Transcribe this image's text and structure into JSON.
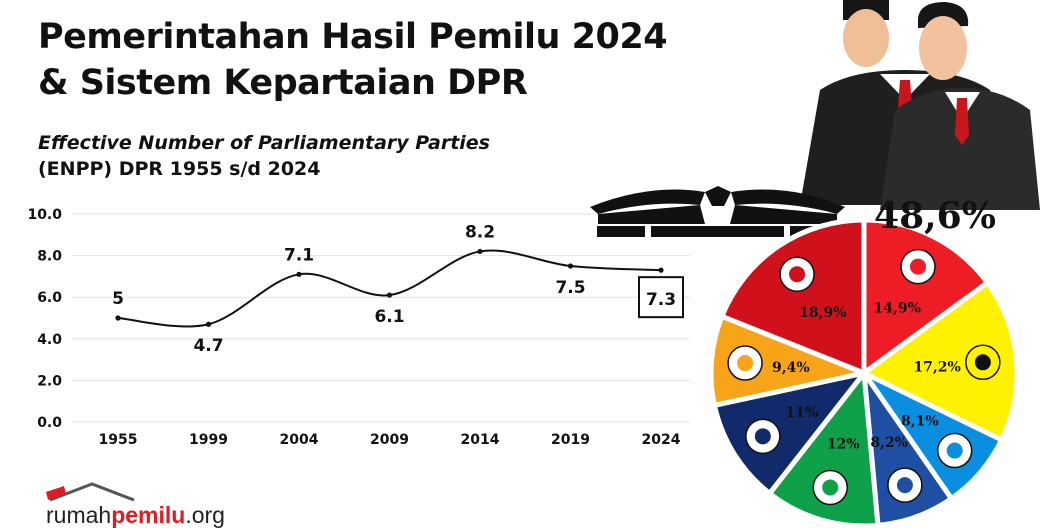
{
  "header": {
    "title_line1": "Pemerintahan Hasil Pemilu 2024",
    "title_line2": "& Sistem Kepartaian DPR",
    "subtitle_line1": "Effective Number of Parliamentary Parties",
    "subtitle_line2": "(ENPP) DPR 1955 s/d 2024"
  },
  "chart_data": [
    {
      "type": "line",
      "title": "Effective Number of Parliamentary Parties (ENPP) DPR 1955 s/d 2024",
      "x": [
        "1955",
        "1999",
        "2004",
        "2009",
        "2014",
        "2019",
        "2024"
      ],
      "values": [
        5,
        4.7,
        7.1,
        6.1,
        8.2,
        7.5,
        7.3
      ],
      "labels": [
        "5",
        "4.7",
        "7.1",
        "6.1",
        "8.2",
        "7.5",
        "7.3"
      ],
      "yticks": [
        "0.0",
        "2.0",
        "4.0",
        "6.0",
        "8.0",
        "10.0"
      ],
      "ylim": [
        0,
        10
      ],
      "grid": true,
      "highlight": "2024",
      "color": "#111111"
    },
    {
      "type": "pie",
      "headline": "48,6%",
      "slices": [
        {
          "label": "14,9%",
          "value": 14.9,
          "party_icon": "garuda-icon",
          "color": "#ee1c24"
        },
        {
          "label": "17,2%",
          "value": 17.2,
          "party_icon": "banyan-tree-icon",
          "color": "#fff200"
        },
        {
          "label": "8,1%",
          "value": 8.1,
          "party_icon": "star-emblem-icon",
          "color": "#0a8fe0"
        },
        {
          "label": "8,2%",
          "value": 8.2,
          "party_icon": "triangle-flag-icon",
          "color": "#1f4fa3"
        },
        {
          "label": "12%",
          "value": 12,
          "party_icon": "globe-stars-icon",
          "color": "#0fa04a"
        },
        {
          "label": "11%",
          "value": 11,
          "party_icon": "wave-sphere-icon",
          "color": "#102a6b"
        },
        {
          "label": "9,4%",
          "value": 9.4,
          "party_icon": "crescent-icon",
          "color": "#f7a418"
        },
        {
          "label": "18,9%",
          "value": 18.9,
          "party_icon": "bull-head-icon",
          "color": "#d0111c"
        }
      ]
    }
  ],
  "brand": {
    "logo_light": "rumah",
    "logo_bold": "pemilu",
    "logo_tail": ".org",
    "accent": "#e01b22"
  }
}
